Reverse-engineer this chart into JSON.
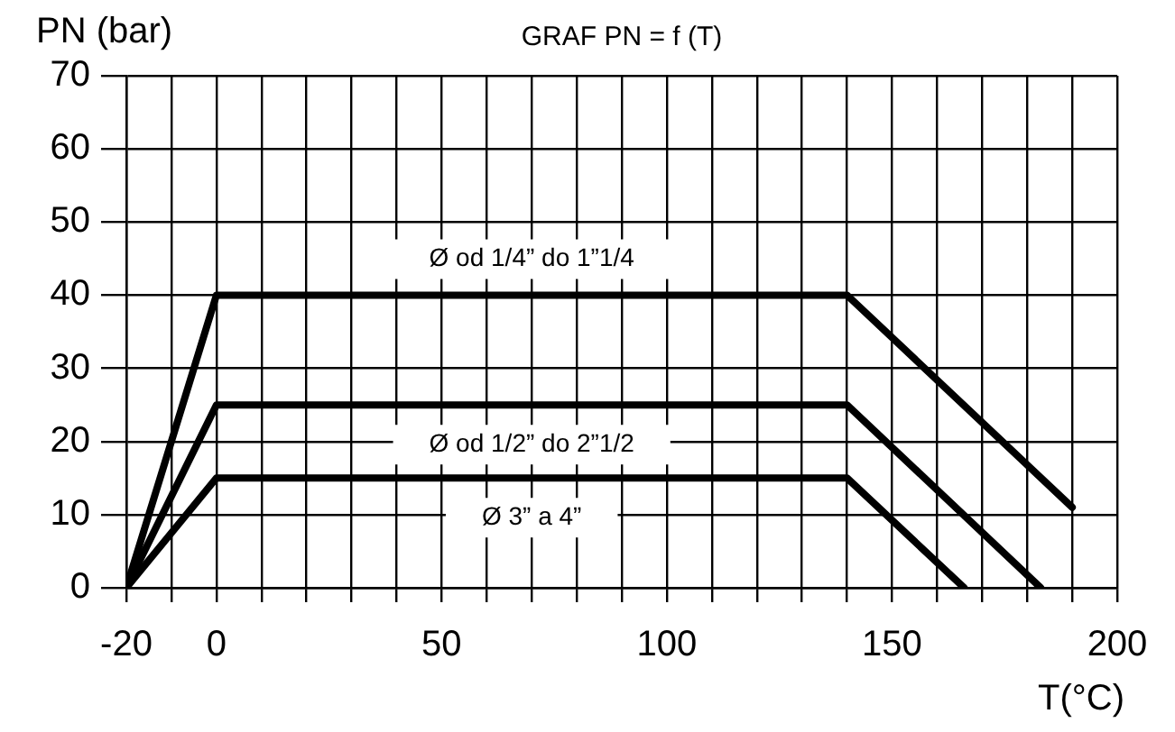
{
  "chart_data": {
    "type": "line",
    "title": "GRAF PN = f (T)",
    "xlabel": "T(°C)",
    "ylabel": "PN (bar)",
    "xlim": [
      -20,
      200
    ],
    "xticks": [
      -20,
      {
        "value": -10,
        "label": null
      },
      0,
      {
        "value": 10,
        "label": null
      },
      {
        "value": 20,
        "label": null
      },
      {
        "value": 30,
        "label": null
      },
      {
        "value": 40,
        "label": null
      },
      50,
      {
        "value": 60,
        "label": null
      },
      {
        "value": 70,
        "label": null
      },
      {
        "value": 80,
        "label": null
      },
      {
        "value": 90,
        "label": null
      },
      100,
      {
        "value": 110,
        "label": null
      },
      {
        "value": 120,
        "label": null
      },
      {
        "value": 130,
        "label": null
      },
      {
        "value": 140,
        "label": null
      },
      150,
      {
        "value": 160,
        "label": null
      },
      {
        "value": 170,
        "label": null
      },
      {
        "value": 180,
        "label": null
      },
      {
        "value": 190,
        "label": null
      },
      200
    ],
    "ylim": [
      0,
      70
    ],
    "yticks": [
      0,
      10,
      20,
      30,
      40,
      50,
      60,
      70
    ],
    "grid": true,
    "marker": "none",
    "line_style": "solid",
    "series": [
      {
        "name": "Ø od 1/4” do 1”1/4",
        "color": "#000000",
        "x": [
          -20,
          0,
          140,
          190
        ],
        "values": [
          0,
          40,
          40,
          11
        ]
      },
      {
        "name": "Ø od 1/2” do 2”1/2",
        "color": "#000000",
        "x": [
          -20,
          0,
          140,
          183
        ],
        "values": [
          0,
          25,
          25,
          0
        ]
      },
      {
        "name": "Ø 3” a 4”",
        "color": "#000000",
        "x": [
          -20,
          0,
          140,
          166
        ],
        "values": [
          0,
          15,
          15,
          0
        ]
      }
    ]
  }
}
